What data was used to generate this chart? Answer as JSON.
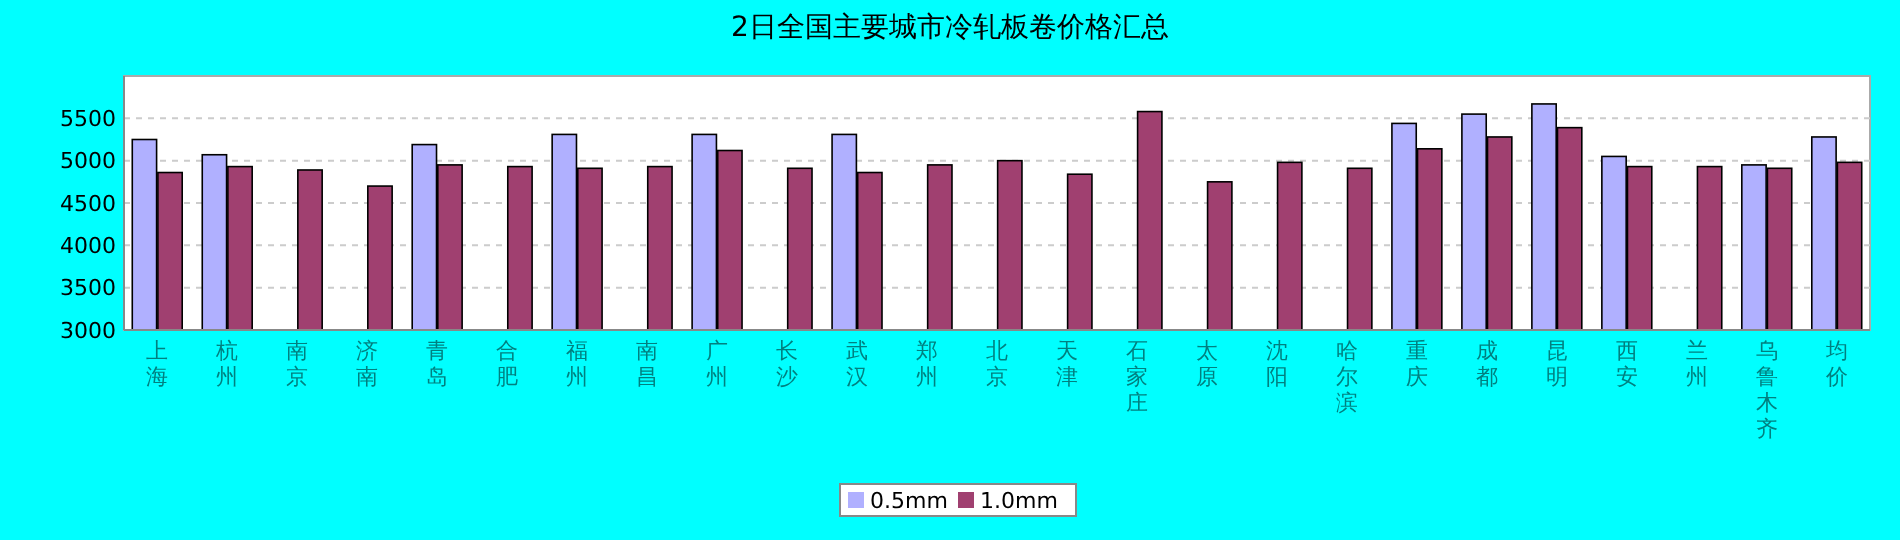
{
  "chart_data": {
    "type": "bar",
    "title": "2日全国主要城市冷轧板卷价格汇总",
    "categories": [
      "上海",
      "杭州",
      "南京",
      "济南",
      "青岛",
      "合肥",
      "福州",
      "南昌",
      "广州",
      "长沙",
      "武汉",
      "郑州",
      "北京",
      "天津",
      "石家庄",
      "太原",
      "沈阳",
      "哈尔滨",
      "重庆",
      "成都",
      "昆明",
      "西安",
      "兰州",
      "乌鲁木齐",
      "均价"
    ],
    "series": [
      {
        "name": "0.5mm",
        "color": "#b0b0ff",
        "values": [
          5250,
          5070,
          null,
          null,
          5190,
          null,
          5310,
          null,
          5310,
          null,
          5310,
          null,
          null,
          null,
          null,
          null,
          null,
          null,
          5440,
          5550,
          5670,
          5050,
          null,
          4950,
          5280
        ]
      },
      {
        "name": "1.0mm",
        "color": "#a04070",
        "values": [
          4860,
          4930,
          4890,
          4700,
          4950,
          4930,
          4910,
          4930,
          5120,
          4910,
          4860,
          4950,
          5000,
          4840,
          5580,
          4750,
          4980,
          4910,
          5140,
          5280,
          5390,
          4930,
          4930,
          4910,
          4980
        ]
      }
    ],
    "ylim": [
      3000,
      6000
    ],
    "yticks": [
      3000,
      3500,
      4000,
      4500,
      5000,
      5500
    ],
    "grid": "y",
    "legend": "bottom"
  }
}
